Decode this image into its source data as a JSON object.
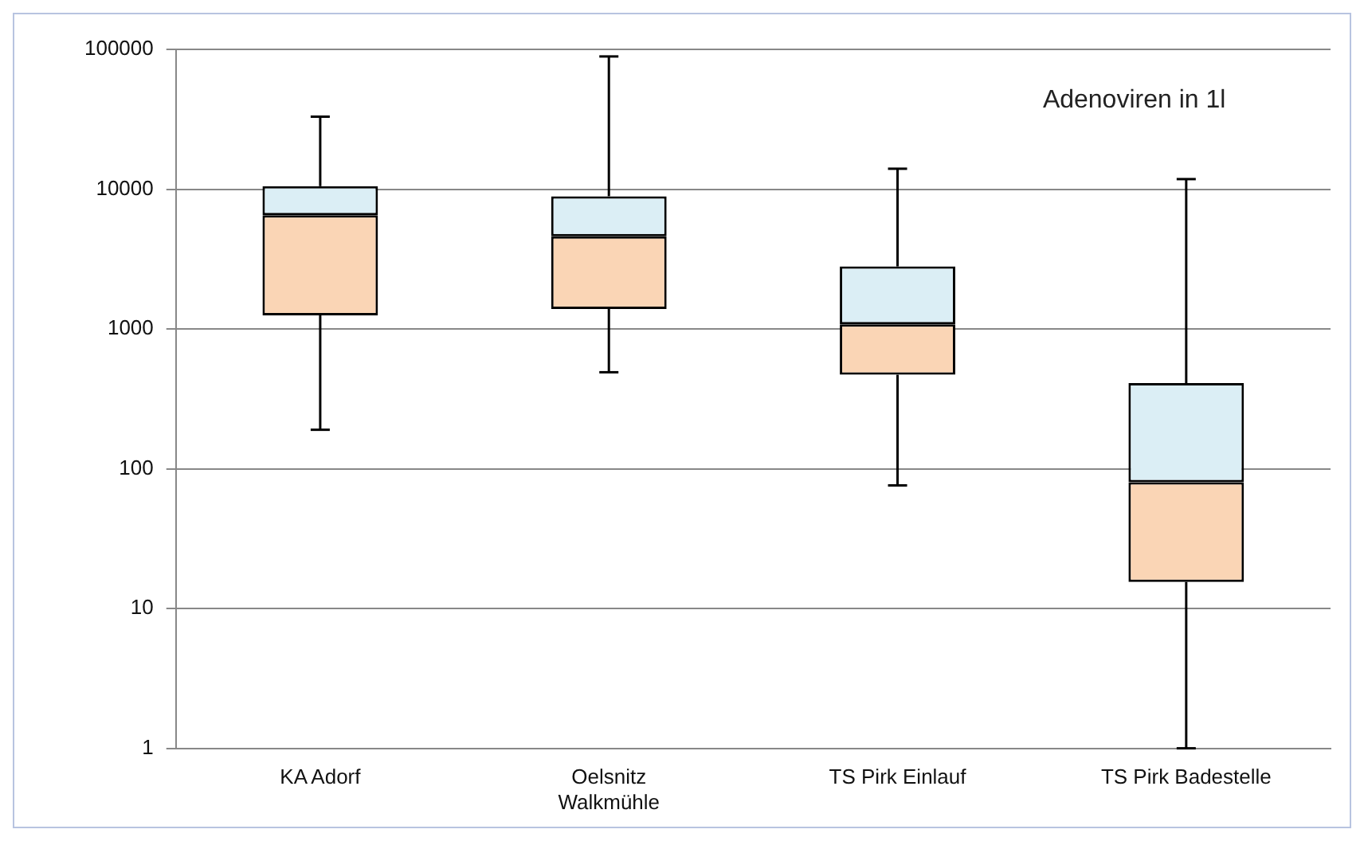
{
  "chart_data": {
    "type": "box",
    "title": "Adenoviren in 1l",
    "categories": [
      "KA Adorf",
      "Oelsnitz Walkmühle",
      "TS Pirk Einlauf",
      "TS Pirk Badestelle"
    ],
    "color": [
      "#fad5b5",
      "#dbeef5"
    ],
    "boxes": [
      {
        "low": 190,
        "q1": 1250,
        "median": 6500,
        "q3": 10500,
        "high": 33000
      },
      {
        "low": 490,
        "q1": 1390,
        "median": 4600,
        "q3": 8900,
        "high": 89000
      },
      {
        "low": 76,
        "q1": 470,
        "median": 1080,
        "q3": 2800,
        "high": 14000
      },
      {
        "low": 1,
        "q1": 15.5,
        "median": 80,
        "q3": 410,
        "high": 11800
      }
    ],
    "log": true,
    "ylim": [
      1,
      100000
    ],
    "yticks": [
      1,
      10,
      100,
      1000,
      10000,
      100000
    ],
    "grid": "y"
  }
}
